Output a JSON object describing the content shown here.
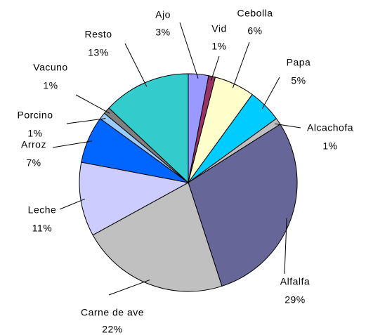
{
  "chart_data": {
    "type": "pie",
    "categories": [
      "Ajo",
      "Vid",
      "Cebolla",
      "Papa",
      "Alcachofa",
      "Alfalfa",
      "Carne de ave",
      "Leche",
      "Arroz",
      "Porcino",
      "Vacuno",
      "Resto"
    ],
    "values": [
      3,
      1,
      6,
      5,
      1,
      29,
      22,
      11,
      7,
      1,
      1,
      13
    ],
    "value_labels": [
      "3%",
      "1%",
      "6%",
      "5%",
      "1%",
      "29%",
      "22%",
      "11%",
      "7%",
      "1%",
      "1%",
      "13%"
    ],
    "colors": [
      "#9999ff",
      "#993366",
      "#ffffcc",
      "#00ccff",
      "#c0c0c0",
      "#666699",
      "#c0c0c0",
      "#ccccff",
      "#0066ff",
      "#99ccff",
      "#808080",
      "#33cccc"
    ]
  }
}
